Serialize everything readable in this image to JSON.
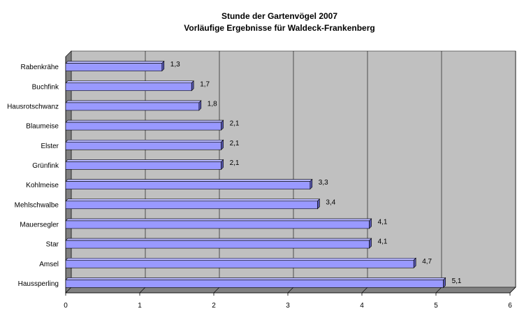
{
  "chart_data": {
    "type": "bar",
    "orientation": "horizontal",
    "title": "Stunde der Gartenvögel 2007",
    "subtitle": "Vorläufige Ergebnisse für Waldeck-Frankenberg",
    "categories": [
      "Rabenkrähe",
      "Buchfink",
      "Hausrotschwanz",
      "Blaumeise",
      "Elster",
      "Grünfink",
      "Kohlmeise",
      "Mehlschwalbe",
      "Mauersegler",
      "Star",
      "Amsel",
      "Haussperling"
    ],
    "values": [
      1.3,
      1.7,
      1.8,
      2.1,
      2.1,
      2.1,
      3.3,
      3.4,
      4.1,
      4.1,
      4.7,
      5.1
    ],
    "value_labels": [
      "1,3",
      "1,7",
      "1,8",
      "2,1",
      "2,1",
      "2,1",
      "3,3",
      "3,4",
      "4,1",
      "4,1",
      "4,7",
      "5,1"
    ],
    "xticks": [
      "0",
      "1",
      "2",
      "3",
      "4",
      "5",
      "6"
    ],
    "xlim": [
      0,
      6
    ],
    "grid": true,
    "legend": "none",
    "colors": {
      "bar": "#9999ff",
      "bar_top": "#b8b8ff",
      "bar_side": "#5555aa",
      "bar_outline": "#000000",
      "plot_background": "#c0c0c0",
      "wall_3d": "#808080",
      "gridline": "#000000"
    }
  }
}
